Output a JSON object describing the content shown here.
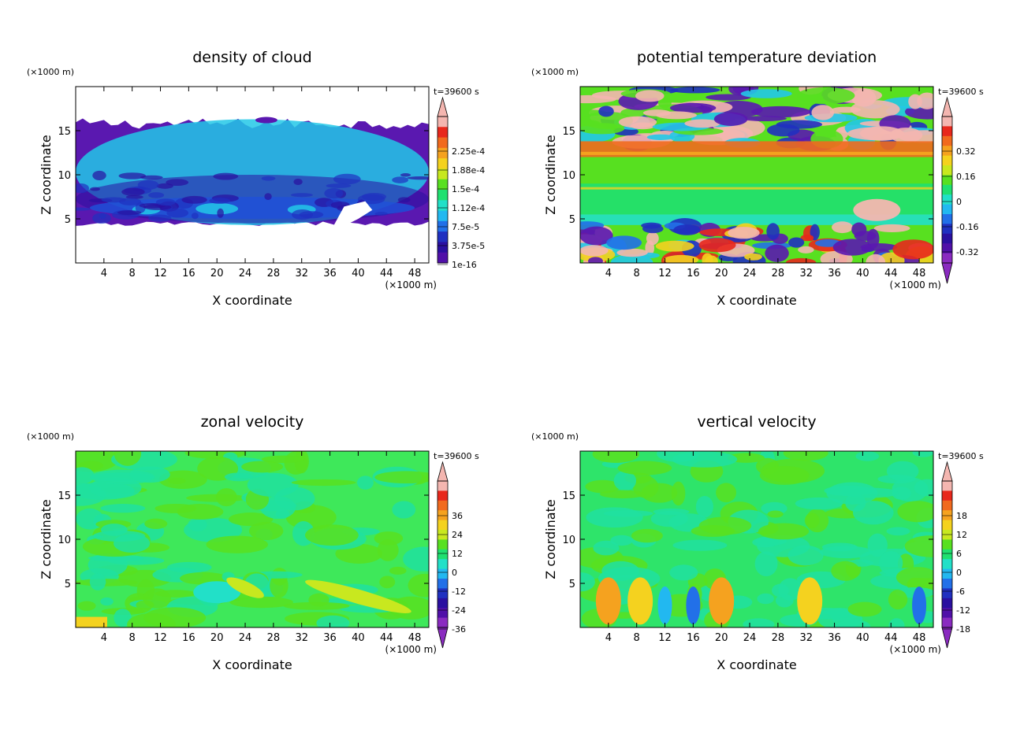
{
  "chart_data": [
    {
      "type": "heatmap",
      "title": "density of cloud",
      "xlabel": "X coordinate",
      "ylabel": "Z coordinate",
      "x_unit": "(×1000 m)",
      "z_unit": "(×1000 m)",
      "time_label": "t=39600 s",
      "xlim": [
        0,
        50
      ],
      "ylim": [
        0,
        20
      ],
      "x_ticks": [
        "4",
        "8",
        "12",
        "16",
        "20",
        "24",
        "28",
        "32",
        "36",
        "40",
        "44",
        "48"
      ],
      "y_ticks": [
        "5",
        "10",
        "15"
      ],
      "colorbar": {
        "labels": [
          "2.25e-4",
          "1.88e-4",
          "1.5e-4",
          "1.12e-4",
          "7.5e-5",
          "3.75e-5",
          "1e-16"
        ],
        "colors": [
          "#f4b6b0",
          "#e8281c",
          "#f16a1e",
          "#f5a21f",
          "#f4d21f",
          "#c8e81f",
          "#58e020",
          "#20e070",
          "#22e0c8",
          "#22b8f0",
          "#2270e8",
          "#2030c0",
          "#2a10a0",
          "#5010a8"
        ]
      },
      "features": [
        {
          "x": 0,
          "z": 4.3,
          "x2": 50,
          "z2": 16.3,
          "level": 1
        },
        {
          "x": 0,
          "z": 4.5,
          "x2": 50,
          "z2": 10,
          "level": 2
        },
        {
          "x": 2,
          "z": 5.0,
          "x2": 48,
          "z2": 7.5,
          "level": 3
        },
        {
          "x": 8,
          "z": 5.5,
          "x2": 12,
          "z2": 6.6,
          "level": 4
        },
        {
          "x": 17,
          "z": 5.5,
          "x2": 23,
          "z2": 6.8,
          "level": 4
        },
        {
          "x": 30,
          "z": 5.5,
          "x2": 34,
          "z2": 6.6,
          "level": 4
        }
      ]
    },
    {
      "type": "heatmap",
      "title": "potential temperature deviation",
      "xlabel": "X coordinate",
      "ylabel": "Z coordinate",
      "x_unit": "(×1000 m)",
      "z_unit": "(×1000 m)",
      "time_label": "t=39600 s",
      "xlim": [
        0,
        50
      ],
      "ylim": [
        0,
        20
      ],
      "x_ticks": [
        "4",
        "8",
        "12",
        "16",
        "20",
        "24",
        "28",
        "32",
        "36",
        "40",
        "44",
        "48"
      ],
      "y_ticks": [
        "5",
        "10",
        "15"
      ],
      "colorbar": {
        "labels": [
          "0.32",
          "0.16",
          "0",
          "-0.16",
          "-0.32"
        ],
        "colors": [
          "#f4b6b0",
          "#e8281c",
          "#f16a1e",
          "#f5a21f",
          "#f4d21f",
          "#c8e81f",
          "#58e020",
          "#20e070",
          "#22e0c8",
          "#22b8f0",
          "#2270e8",
          "#2030c0",
          "#2a10a0",
          "#5010a8",
          "#8a2bc0"
        ]
      },
      "bands": [
        {
          "z": 12.0,
          "z2": 13.8,
          "level": 2
        },
        {
          "z": 9.0,
          "z2": 12.0,
          "level": 6
        },
        {
          "z": 5.5,
          "z2": 9.0,
          "level": 7
        },
        {
          "z": 4.3,
          "z2": 5.5,
          "level": 8
        }
      ]
    },
    {
      "type": "heatmap",
      "title": "zonal velocity",
      "xlabel": "X coordinate",
      "ylabel": "Z coordinate",
      "x_unit": "(×1000 m)",
      "z_unit": "(×1000 m)",
      "time_label": "t=39600 s",
      "xlim": [
        0,
        50
      ],
      "ylim": [
        0,
        20
      ],
      "x_ticks": [
        "4",
        "8",
        "12",
        "16",
        "20",
        "24",
        "28",
        "32",
        "36",
        "40",
        "44",
        "48"
      ],
      "y_ticks": [
        "5",
        "10",
        "15"
      ],
      "colorbar": {
        "labels": [
          "36",
          "24",
          "12",
          "0",
          "-12",
          "-24",
          "-36"
        ],
        "colors": [
          "#f4b6b0",
          "#e8281c",
          "#f16a1e",
          "#f5a21f",
          "#f4d21f",
          "#c8e81f",
          "#58e020",
          "#20e070",
          "#22e0c8",
          "#22b8f0",
          "#2270e8",
          "#2030c0",
          "#2a10a0",
          "#5010a8",
          "#8a2bc0"
        ]
      }
    },
    {
      "type": "heatmap",
      "title": "vertical velocity",
      "xlabel": "X coordinate",
      "ylabel": "Z coordinate",
      "x_unit": "(×1000 m)",
      "z_unit": "(×1000 m)",
      "time_label": "t=39600 s",
      "xlim": [
        0,
        50
      ],
      "ylim": [
        0,
        20
      ],
      "x_ticks": [
        "4",
        "8",
        "12",
        "16",
        "20",
        "24",
        "28",
        "32",
        "36",
        "40",
        "44",
        "48"
      ],
      "y_ticks": [
        "5",
        "10",
        "15"
      ],
      "colorbar": {
        "labels": [
          "18",
          "12",
          "6",
          "0",
          "-6",
          "-12",
          "-18"
        ],
        "colors": [
          "#f4b6b0",
          "#e8281c",
          "#f16a1e",
          "#f5a21f",
          "#f4d21f",
          "#c8e81f",
          "#58e020",
          "#20e070",
          "#22e0c8",
          "#22b8f0",
          "#2270e8",
          "#2030c0",
          "#2a10a0",
          "#5010a8",
          "#8a2bc0"
        ]
      }
    }
  ]
}
